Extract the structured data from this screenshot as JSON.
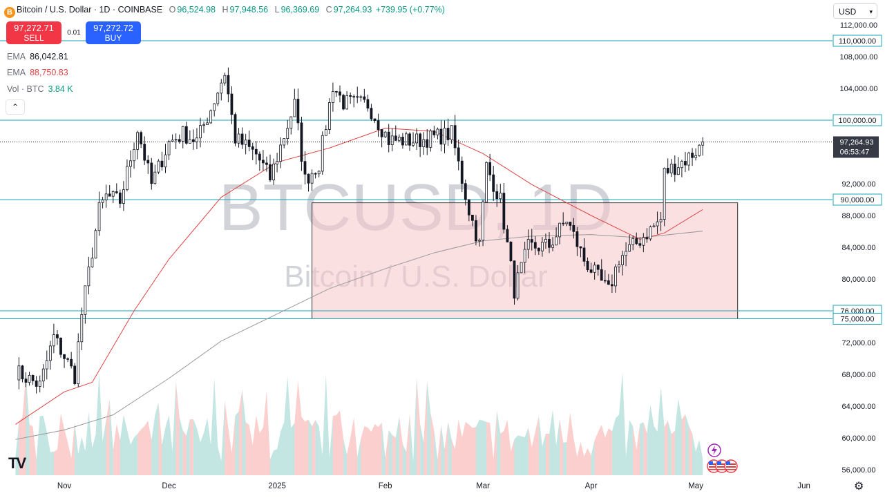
{
  "header": {
    "symbol_icon": "B",
    "title": "Bitcoin / U.S. Dollar · 1D · COINBASE",
    "open_label": "O",
    "open": "96,524.98",
    "high_label": "H",
    "high": "97,948.56",
    "low_label": "L",
    "low": "96,369.69",
    "close_label": "C",
    "close": "97,264.93",
    "change": "+739.95 (+0.77%)"
  },
  "trade": {
    "sell_price": "97,272.71",
    "sell_label": "SELL",
    "spread": "0.01",
    "buy_price": "97,272.72",
    "buy_label": "BUY"
  },
  "indicators": [
    {
      "name": "EMA",
      "value": "86,042.81",
      "color": "#555555"
    },
    {
      "name": "EMA",
      "value": "88,750.83",
      "color": "#e04444"
    },
    {
      "name": "Vol · BTC",
      "value": "3.84 K",
      "color": "#089981"
    }
  ],
  "controls": {
    "collapse_icon": "chevron-up-icon",
    "collapse_glyph": "⌃",
    "currency": "USD",
    "settings_icon": "gear-icon",
    "logo": "TV"
  },
  "colors": {
    "up": "#26a69a",
    "down": "#ef5350",
    "ema_fast": "#e04444",
    "ema_slow": "#999999",
    "hline": "#1aa6b7",
    "box_fill": "#f7c6cb",
    "box_stroke": "#333333"
  },
  "chart_data": {
    "type": "candlestick",
    "watermark_symbol": "BTCUSD, 1D",
    "watermark_name": "Bitcoin / U.S. Dollar",
    "ylim": [
      55000,
      112500
    ],
    "y_ticks": [
      56000,
      60000,
      64000,
      68000,
      72000,
      76000,
      80000,
      84000,
      88000,
      92000,
      96000,
      100000,
      104000,
      108000,
      112000
    ],
    "y_tick_labels": [
      "56,000.00",
      "60,000.00",
      "64,000.00",
      "68,000.00",
      "72,000.00",
      "76,000.00",
      "80,000.00",
      "84,000.00",
      "88,000.00",
      "92,000.00",
      "96,000.00",
      "100,000.00",
      "104,000.00",
      "108,000.00",
      "112,000.00"
    ],
    "x_labels": [
      {
        "label": "Nov",
        "date": "2024-11-01"
      },
      {
        "label": "Dec",
        "date": "2024-12-01"
      },
      {
        "label": "2025",
        "date": "2025-01-01"
      },
      {
        "label": "Feb",
        "date": "2025-02-01"
      },
      {
        "label": "Mar",
        "date": "2025-03-01"
      },
      {
        "label": "Apr",
        "date": "2025-04-01"
      },
      {
        "label": "May",
        "date": "2025-05-01"
      },
      {
        "label": "Jun",
        "date": "2025-06-01"
      }
    ],
    "horizontal_lines": [
      {
        "value": 110000,
        "label": "110,000.00"
      },
      {
        "value": 100000,
        "label": "100,000.00"
      },
      {
        "value": 90000,
        "label": "90,000.00"
      },
      {
        "value": 76000,
        "label": "76,000.00"
      },
      {
        "value": 75000,
        "label": "75,000.00"
      }
    ],
    "last_price": {
      "value": 97264.93,
      "label": "97,264.93",
      "countdown": "06:53:47"
    },
    "support_zone": {
      "x0": "2025-01-11",
      "x1": "2025-05-13",
      "y0": 75000,
      "y1": 89600
    },
    "closes": [
      {
        "date": "2024-10-18",
        "c": 68400
      },
      {
        "date": "2024-10-25",
        "c": 66600
      },
      {
        "date": "2024-10-29",
        "c": 72700
      },
      {
        "date": "2024-11-04",
        "c": 67800
      },
      {
        "date": "2024-11-06",
        "c": 75600
      },
      {
        "date": "2024-11-11",
        "c": 88700
      },
      {
        "date": "2024-11-13",
        "c": 90400
      },
      {
        "date": "2024-11-17",
        "c": 89800
      },
      {
        "date": "2024-11-22",
        "c": 98900
      },
      {
        "date": "2024-11-26",
        "c": 91900
      },
      {
        "date": "2024-12-01",
        "c": 97200
      },
      {
        "date": "2024-12-05",
        "c": 98300
      },
      {
        "date": "2024-12-09",
        "c": 97400
      },
      {
        "date": "2024-12-13",
        "c": 101400
      },
      {
        "date": "2024-12-17",
        "c": 106000
      },
      {
        "date": "2024-12-20",
        "c": 97700
      },
      {
        "date": "2024-12-26",
        "c": 95700
      },
      {
        "date": "2024-12-30",
        "c": 92700
      },
      {
        "date": "2025-01-06",
        "c": 102000
      },
      {
        "date": "2025-01-09",
        "c": 92500
      },
      {
        "date": "2025-01-13",
        "c": 94500
      },
      {
        "date": "2025-01-17",
        "c": 104400
      },
      {
        "date": "2025-01-20",
        "c": 102200
      },
      {
        "date": "2025-01-27",
        "c": 102000
      },
      {
        "date": "2025-02-02",
        "c": 97500
      },
      {
        "date": "2025-02-10",
        "c": 97400
      },
      {
        "date": "2025-02-20",
        "c": 98300
      },
      {
        "date": "2025-02-25",
        "c": 88700
      },
      {
        "date": "2025-02-28",
        "c": 84300
      },
      {
        "date": "2025-03-02",
        "c": 94200
      },
      {
        "date": "2025-03-06",
        "c": 89900
      },
      {
        "date": "2025-03-10",
        "c": 78600
      },
      {
        "date": "2025-03-14",
        "c": 84000
      },
      {
        "date": "2025-03-20",
        "c": 84200
      },
      {
        "date": "2025-03-25",
        "c": 87500
      },
      {
        "date": "2025-03-30",
        "c": 82400
      },
      {
        "date": "2025-04-06",
        "c": 78400
      },
      {
        "date": "2025-04-09",
        "c": 82600
      },
      {
        "date": "2025-04-14",
        "c": 84500
      },
      {
        "date": "2025-04-21",
        "c": 87500
      },
      {
        "date": "2025-04-22",
        "c": 93400
      },
      {
        "date": "2025-04-28",
        "c": 95000
      },
      {
        "date": "2025-05-02",
        "c": 96500
      },
      {
        "date": "2025-05-03",
        "c": 97265
      }
    ],
    "ema_fast_series": [
      {
        "date": "2024-10-18",
        "v": 61700
      },
      {
        "date": "2024-11-01",
        "v": 65800
      },
      {
        "date": "2024-11-09",
        "v": 67000
      },
      {
        "date": "2024-11-21",
        "v": 76000
      },
      {
        "date": "2024-12-01",
        "v": 82500
      },
      {
        "date": "2024-12-16",
        "v": 90300
      },
      {
        "date": "2025-01-01",
        "v": 94700
      },
      {
        "date": "2025-01-16",
        "v": 96500
      },
      {
        "date": "2025-02-01",
        "v": 99000
      },
      {
        "date": "2025-02-15",
        "v": 98600
      },
      {
        "date": "2025-03-01",
        "v": 95800
      },
      {
        "date": "2025-03-15",
        "v": 91900
      },
      {
        "date": "2025-04-01",
        "v": 88000
      },
      {
        "date": "2025-04-15",
        "v": 85000
      },
      {
        "date": "2025-04-22",
        "v": 85800
      },
      {
        "date": "2025-05-03",
        "v": 88750
      }
    ],
    "ema_slow_series": [
      {
        "date": "2024-10-18",
        "v": 59800
      },
      {
        "date": "2024-11-01",
        "v": 61000
      },
      {
        "date": "2024-11-15",
        "v": 62900
      },
      {
        "date": "2024-12-01",
        "v": 67500
      },
      {
        "date": "2024-12-16",
        "v": 72200
      },
      {
        "date": "2025-01-01",
        "v": 75600
      },
      {
        "date": "2025-01-16",
        "v": 78800
      },
      {
        "date": "2025-02-01",
        "v": 81300
      },
      {
        "date": "2025-02-15",
        "v": 83300
      },
      {
        "date": "2025-03-01",
        "v": 84800
      },
      {
        "date": "2025-03-15",
        "v": 85400
      },
      {
        "date": "2025-04-01",
        "v": 85600
      },
      {
        "date": "2025-04-15",
        "v": 85200
      },
      {
        "date": "2025-05-03",
        "v": 86040
      }
    ]
  }
}
